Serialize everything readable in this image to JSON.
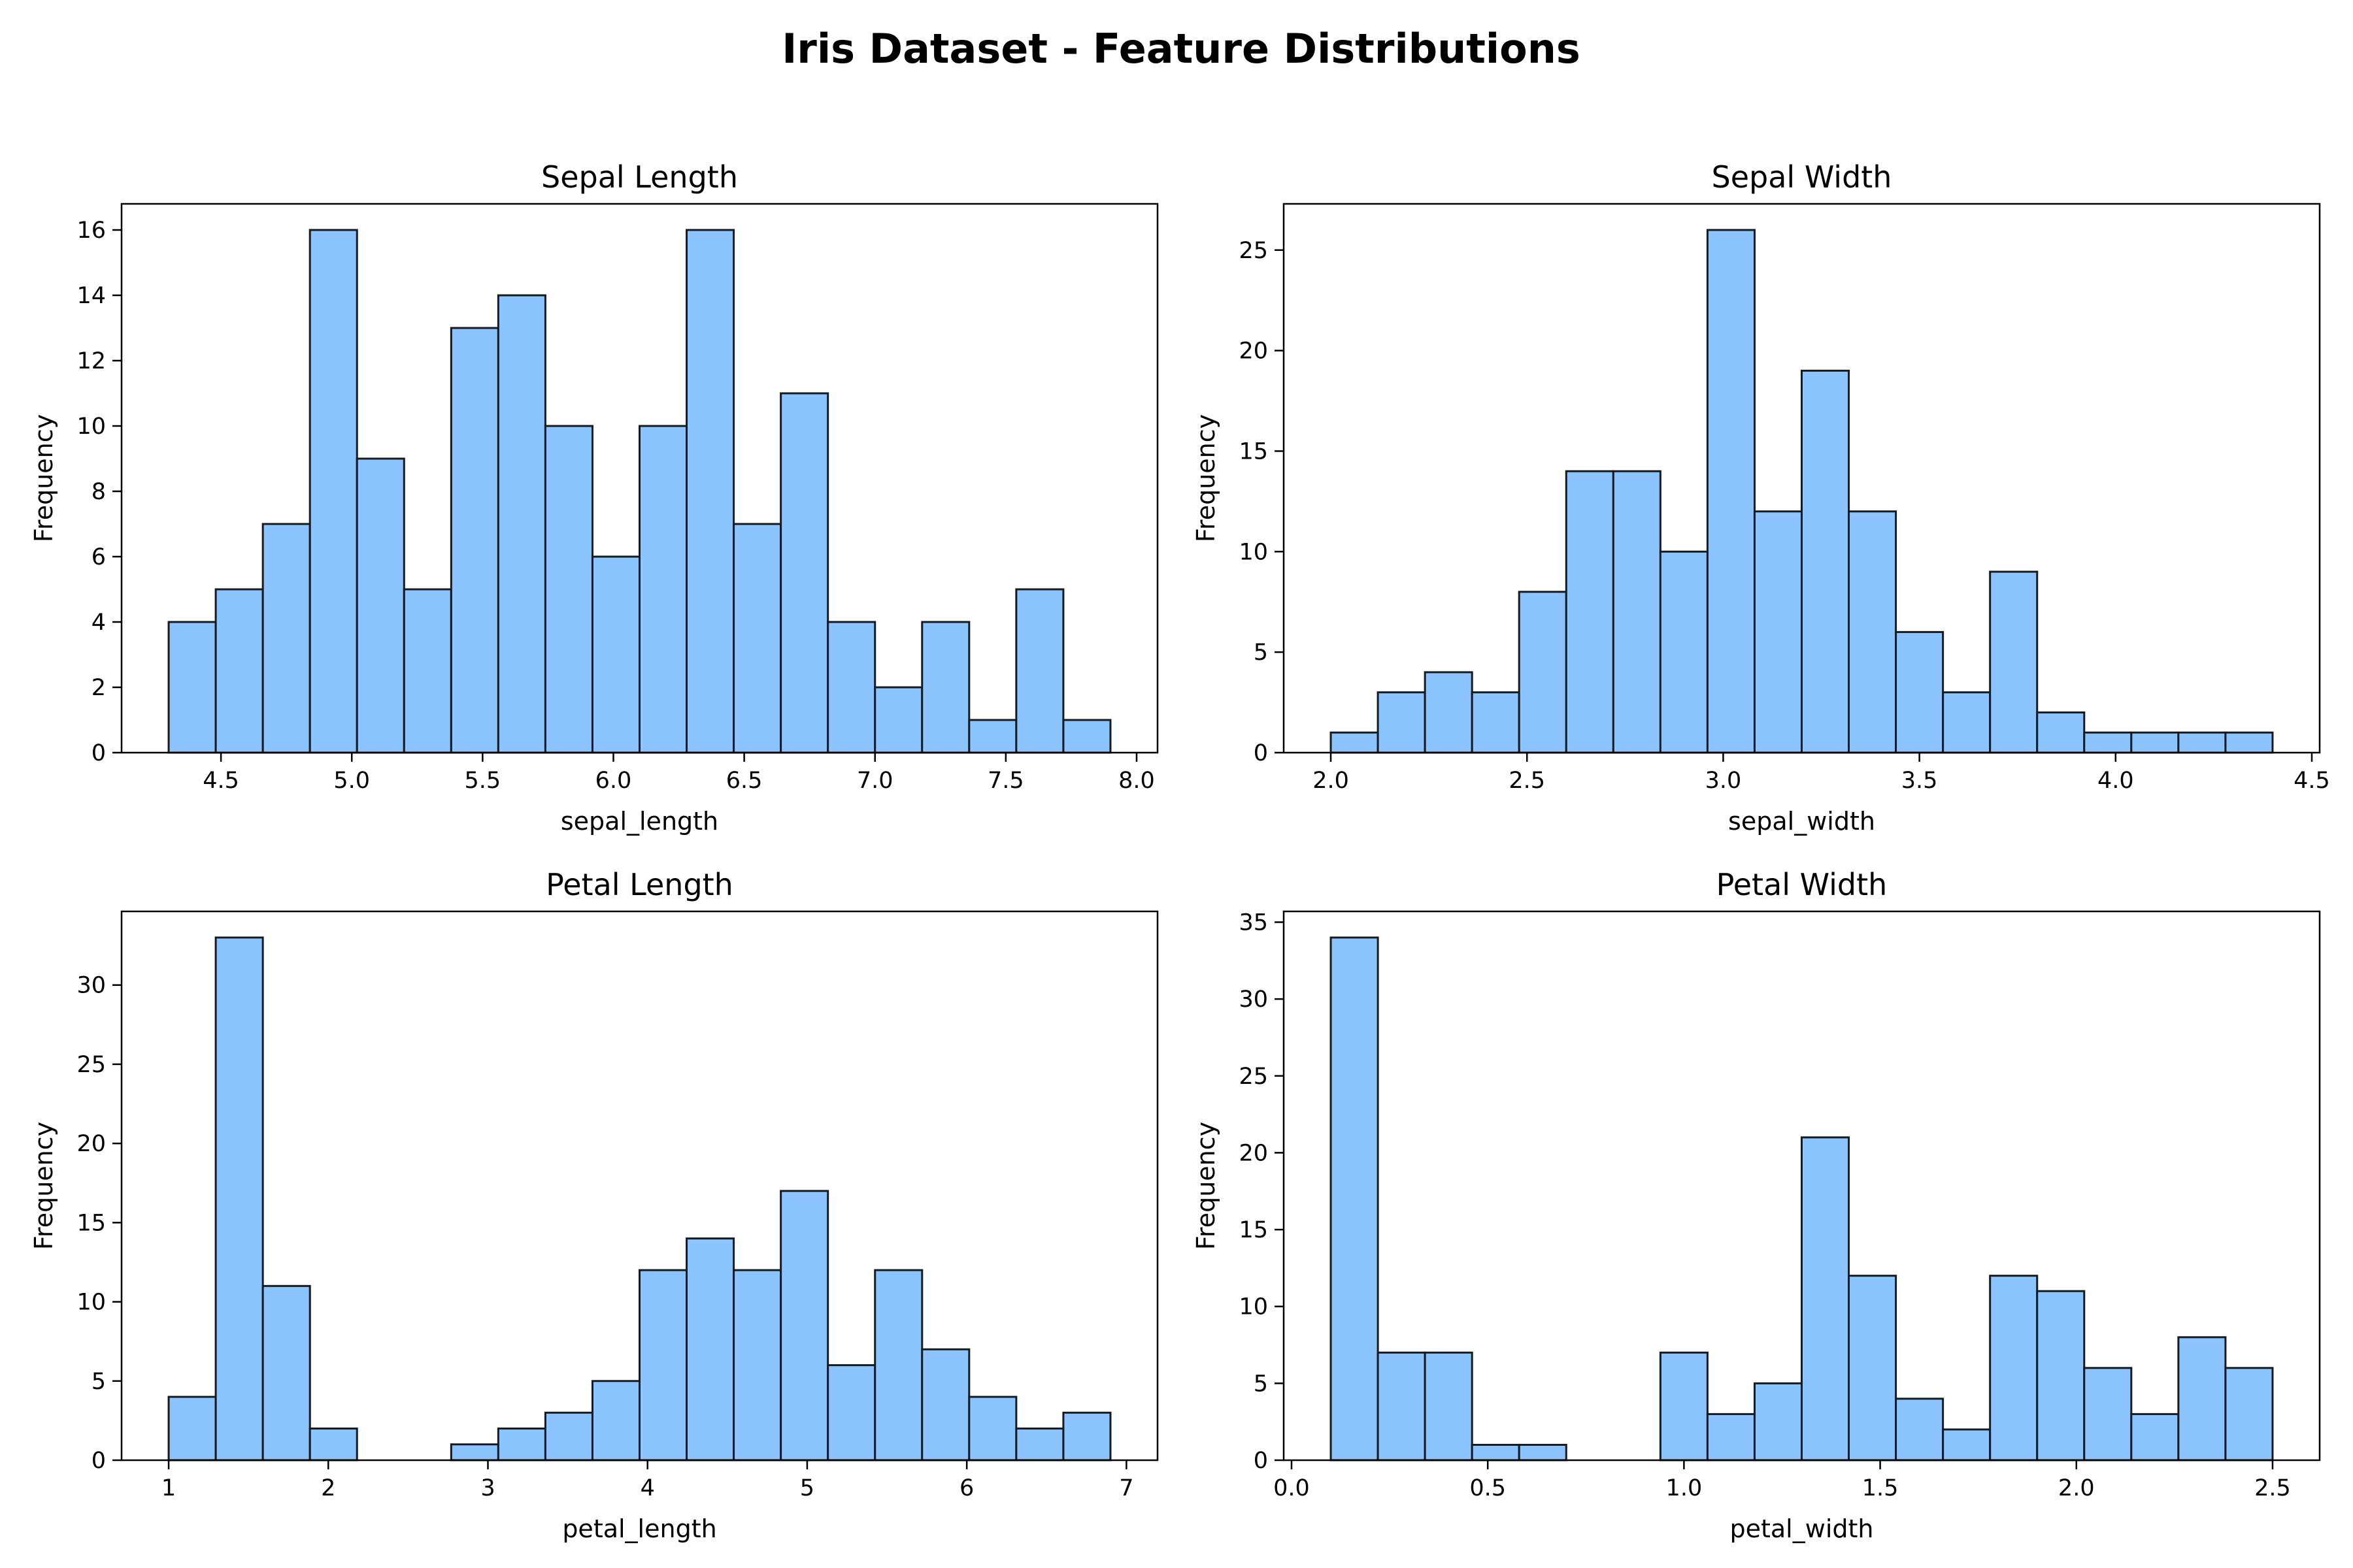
{
  "title": "Iris Dataset - Feature Distributions",
  "style": {
    "bar_fill": "#8cc4ff",
    "bar_edge": "#1a1a1a",
    "axis_color": "#000000"
  },
  "chart_data": [
    {
      "type": "bar",
      "title": "Sepal Length",
      "xlabel": "sepal_length",
      "ylabel": "Frequency",
      "grid": false,
      "bin_edges": [
        4.3,
        4.48,
        4.66,
        4.84,
        5.02,
        5.2,
        5.38,
        5.56,
        5.74,
        5.92,
        6.1,
        6.28,
        6.46,
        6.64,
        6.82,
        7.0,
        7.18,
        7.36,
        7.54,
        7.72,
        7.9
      ],
      "values": [
        4,
        5,
        7,
        16,
        9,
        5,
        13,
        14,
        10,
        6,
        10,
        16,
        7,
        11,
        4,
        2,
        4,
        1,
        5,
        1
      ],
      "xlim": [
        4.12,
        8.08
      ],
      "ylim": [
        0,
        16.8
      ],
      "xticks": [
        4.5,
        5.0,
        5.5,
        6.0,
        6.5,
        7.0,
        7.5,
        8.0
      ],
      "xtick_labels": [
        "4.5",
        "5.0",
        "5.5",
        "6.0",
        "6.5",
        "7.0",
        "7.5",
        "8.0"
      ],
      "yticks": [
        0,
        2,
        4,
        6,
        8,
        10,
        12,
        14,
        16
      ],
      "ytick_labels": [
        "0",
        "2",
        "4",
        "6",
        "8",
        "10",
        "12",
        "14",
        "16"
      ]
    },
    {
      "type": "bar",
      "title": "Sepal Width",
      "xlabel": "sepal_width",
      "ylabel": "Frequency",
      "grid": false,
      "bin_edges": [
        2.0,
        2.12,
        2.24,
        2.36,
        2.48,
        2.6,
        2.72,
        2.84,
        2.96,
        3.08,
        3.2,
        3.32,
        3.44,
        3.56,
        3.68,
        3.8,
        3.92,
        4.04,
        4.16,
        4.28,
        4.4
      ],
      "values": [
        1,
        3,
        4,
        3,
        8,
        14,
        14,
        10,
        26,
        12,
        19,
        12,
        6,
        3,
        9,
        2,
        1,
        1,
        1,
        1
      ],
      "xlim": [
        1.88,
        4.52
      ],
      "ylim": [
        0,
        27.3
      ],
      "xticks": [
        2.0,
        2.5,
        3.0,
        3.5,
        4.0,
        4.5
      ],
      "xtick_labels": [
        "2.0",
        "2.5",
        "3.0",
        "3.5",
        "4.0",
        "4.5"
      ],
      "yticks": [
        0,
        5,
        10,
        15,
        20,
        25
      ],
      "ytick_labels": [
        "0",
        "5",
        "10",
        "15",
        "20",
        "25"
      ]
    },
    {
      "type": "bar",
      "title": "Petal Length",
      "xlabel": "petal_length",
      "ylabel": "Frequency",
      "grid": false,
      "bin_edges": [
        1.0,
        1.295,
        1.59,
        1.885,
        2.18,
        2.475,
        2.77,
        3.065,
        3.36,
        3.655,
        3.95,
        4.245,
        4.54,
        4.835,
        5.13,
        5.425,
        5.72,
        6.015,
        6.31,
        6.605,
        6.9
      ],
      "values": [
        4,
        33,
        11,
        2,
        0,
        0,
        1,
        2,
        3,
        5,
        12,
        14,
        12,
        17,
        6,
        12,
        7,
        4,
        2,
        3
      ],
      "xlim": [
        0.705,
        7.195
      ],
      "ylim": [
        0,
        34.65
      ],
      "xticks": [
        1,
        2,
        3,
        4,
        5,
        6,
        7
      ],
      "xtick_labels": [
        "1",
        "2",
        "3",
        "4",
        "5",
        "6",
        "7"
      ],
      "yticks": [
        0,
        5,
        10,
        15,
        20,
        25,
        30
      ],
      "ytick_labels": [
        "0",
        "5",
        "10",
        "15",
        "20",
        "25",
        "30"
      ]
    },
    {
      "type": "bar",
      "title": "Petal Width",
      "xlabel": "petal_width",
      "ylabel": "Frequency",
      "grid": false,
      "bin_edges": [
        0.1,
        0.22,
        0.34,
        0.46,
        0.58,
        0.7,
        0.82,
        0.94,
        1.06,
        1.18,
        1.3,
        1.42,
        1.54,
        1.66,
        1.78,
        1.9,
        2.02,
        2.14,
        2.26,
        2.38,
        2.5
      ],
      "values": [
        34,
        7,
        7,
        1,
        1,
        0,
        0,
        7,
        3,
        5,
        21,
        12,
        4,
        2,
        12,
        11,
        6,
        3,
        8,
        6
      ],
      "xlim": [
        -0.02,
        2.62
      ],
      "ylim": [
        0,
        35.7
      ],
      "xticks": [
        0.0,
        0.5,
        1.0,
        1.5,
        2.0,
        2.5
      ],
      "xtick_labels": [
        "0.0",
        "0.5",
        "1.0",
        "1.5",
        "2.0",
        "2.5"
      ],
      "yticks": [
        0,
        5,
        10,
        15,
        20,
        25,
        30,
        35
      ],
      "ytick_labels": [
        "0",
        "5",
        "10",
        "15",
        "20",
        "25",
        "30",
        "35"
      ]
    }
  ]
}
